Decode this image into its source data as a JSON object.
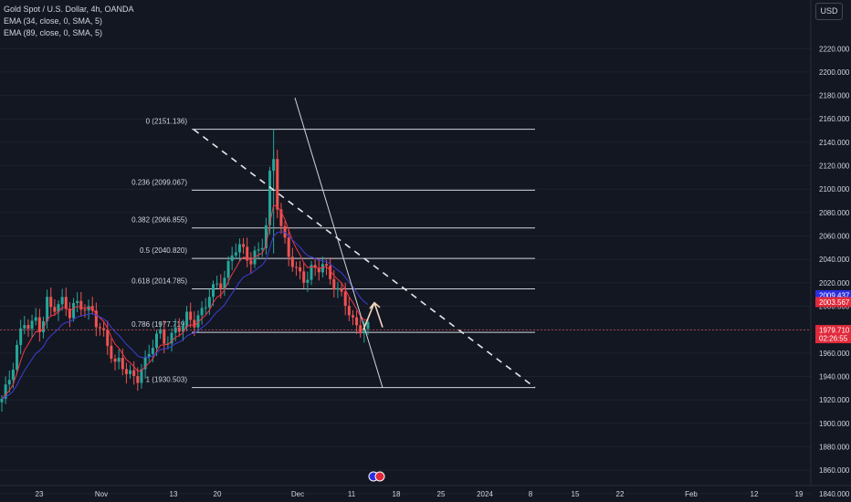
{
  "legend": {
    "title": "Gold Spot / U.S. Dollar, 4h, OANDA",
    "ema1": "EMA (34, close, 0, SMA, 5)",
    "ema2": "EMA (89, close, 0, SMA, 5)"
  },
  "currency_button": "USD",
  "colors": {
    "background": "#131722",
    "up": "#26a69a",
    "down": "#ef5350",
    "ema_fast": "#f23645",
    "ema_slow": "#3d3dd6",
    "fib": "#d1d4dc",
    "axis_text": "#d1d4dc",
    "blue_label": "#2a2ee0",
    "red_label": "#e0293a"
  },
  "chart_data": {
    "type": "candlestick",
    "ylim": [
      1830,
      2245
    ],
    "y_ticks": [
      "1840.000",
      "1860.000",
      "1880.000",
      "1900.000",
      "1920.000",
      "1940.000",
      "1960.000",
      "1980.000",
      "2000.000",
      "2020.000",
      "2040.000",
      "2060.000",
      "2080.000",
      "2100.000",
      "2120.000",
      "2140.000",
      "2160.000",
      "2180.000",
      "2200.000",
      "2220.000"
    ],
    "x_ticks": [
      "23",
      "Nov",
      "13",
      "20",
      "Dec",
      "11",
      "18",
      "25",
      "2024",
      "8",
      "15",
      "22",
      "Feb",
      "12",
      "19"
    ],
    "price_path": [
      1918,
      1932,
      1952,
      1975,
      1985,
      1978,
      1990,
      1982,
      2005,
      1995,
      1998,
      2008,
      1995,
      2002,
      1998,
      1995,
      2000,
      1985,
      1975,
      1962,
      1950,
      1958,
      1945,
      1938,
      1935,
      1950,
      1962,
      1970,
      1975,
      1968,
      1975,
      1985,
      1980,
      1990,
      1985,
      1995,
      2000,
      2010,
      2015,
      2020,
      2035,
      2045,
      2050,
      2045,
      2040,
      2048,
      2045,
      2070,
      2140,
      2085,
      2060,
      2040,
      2030,
      2028,
      2025,
      2032,
      2028,
      2035,
      2030,
      2020,
      2010,
      2000,
      1990,
      1985,
      1982,
      1980
    ],
    "fib_levels": [
      {
        "label": "0 (2151.136)",
        "value": 2151.136
      },
      {
        "label": "0.236 (2099.067)",
        "value": 2099.067
      },
      {
        "label": "0.382 (2066.855)",
        "value": 2066.855
      },
      {
        "label": "0.5 (2040.820)",
        "value": 2040.82
      },
      {
        "label": "0.618 (2014.785)",
        "value": 2014.785
      },
      {
        "label": "0.786 (1977.719)",
        "value": 1977.719
      },
      {
        "label": "1 (1930.503)",
        "value": 1930.503
      }
    ],
    "price_labels": [
      {
        "value": 2009.437,
        "text": "2009.437",
        "color": "blue"
      },
      {
        "value": 2003.567,
        "text": "2003.567",
        "color": "red"
      },
      {
        "value": 1979.71,
        "text": "1979.710",
        "sub": "02:26:55",
        "color": "red"
      }
    ],
    "current_price": 1979.71
  }
}
